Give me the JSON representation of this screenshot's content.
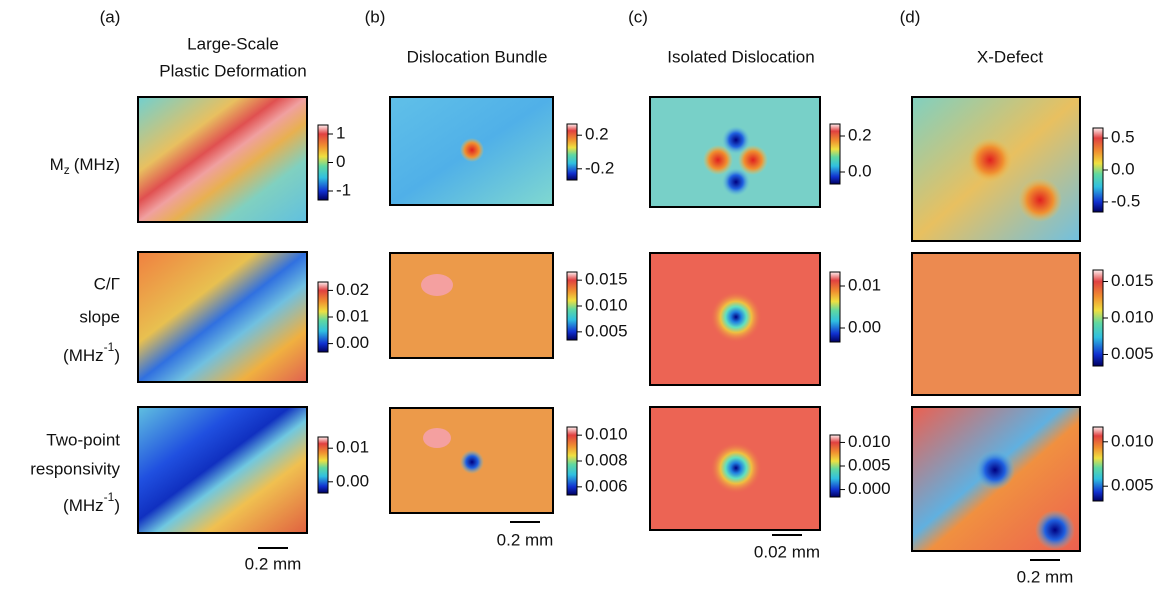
{
  "column_labels": [
    "(a)",
    "(b)",
    "(c)",
    "(d)"
  ],
  "column_titles": [
    [
      "Large-Scale",
      "Plastic Deformation"
    ],
    [
      "Dislocation Bundle"
    ],
    [
      "Isolated Dislocation"
    ],
    [
      "X-Defect"
    ]
  ],
  "row_labels": [
    {
      "main": "M",
      "sub": "z",
      "unit": "(MHz)"
    },
    {
      "lines": [
        "C/Γ",
        "slope"
      ],
      "unit": [
        "(MHz",
        "-1",
        ")"
      ]
    },
    {
      "lines": [
        "Two-point",
        "responsivity"
      ],
      "unit": [
        "(MHz",
        "-1",
        ")"
      ]
    }
  ],
  "colorbars": [
    [
      [
        "1",
        "0",
        "-1"
      ],
      [
        "0.02",
        "0.01",
        "0.00"
      ],
      [
        "0.01",
        "0.00"
      ]
    ],
    [
      [
        "0.2",
        "-0.2"
      ],
      [
        "0.015",
        "0.010",
        "0.005"
      ],
      [
        "0.010",
        "0.008",
        "0.006"
      ]
    ],
    [
      [
        "0.2",
        "0.0"
      ],
      [
        "0.01",
        "0.00"
      ],
      [
        "0.010",
        "0.005",
        "0.000"
      ]
    ],
    [
      [
        "0.5",
        "0.0",
        "-0.5"
      ],
      [
        "0.015",
        "0.010",
        "0.005"
      ],
      [
        "0.010",
        "0.005"
      ]
    ]
  ],
  "scale_bars": [
    "0.2 mm",
    "0.2 mm",
    "0.02 mm",
    "0.2 mm"
  ]
}
